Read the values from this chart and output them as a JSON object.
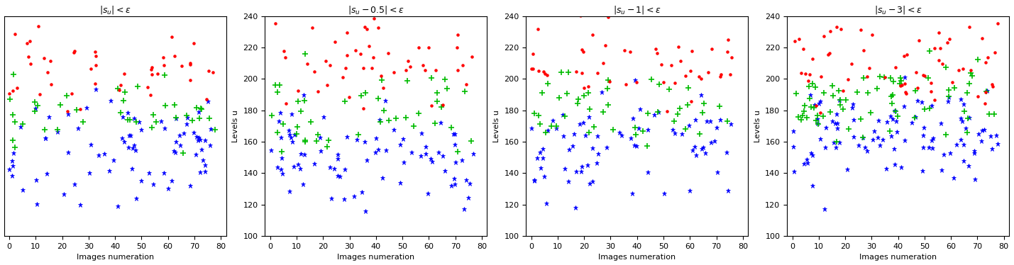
{
  "panels": [
    {
      "title": "$|s_u| < \\epsilon$",
      "ylim": [
        80,
        260
      ],
      "yticks": [],
      "show_ylabels": false,
      "show_ylabel_text": false
    },
    {
      "title": "$|s_u - 0.5| < \\epsilon$",
      "ylim": [
        100,
        240
      ],
      "yticks": [
        100,
        120,
        140,
        160,
        180,
        200,
        220,
        240
      ],
      "show_ylabels": true,
      "show_ylabel_text": true
    },
    {
      "title": "$|s_u - 1| < \\epsilon$",
      "ylim": [
        100,
        240
      ],
      "yticks": [
        100,
        120,
        140,
        160,
        180,
        200,
        220,
        240
      ],
      "show_ylabels": true,
      "show_ylabel_text": true
    },
    {
      "title": "$|s_u - 3| < \\epsilon$",
      "ylim": [
        100,
        240
      ],
      "yticks": [
        100,
        120,
        140,
        160,
        180,
        200,
        220,
        240
      ],
      "show_ylabels": true,
      "show_ylabel_text": true
    }
  ],
  "xlabel": "Images numeration",
  "ylabel": "Levels u",
  "red_color": "#ff0000",
  "green_color": "#00bb00",
  "blue_color": "#0000ff",
  "figsize": [
    14.29,
    3.74
  ],
  "dpi": 100
}
